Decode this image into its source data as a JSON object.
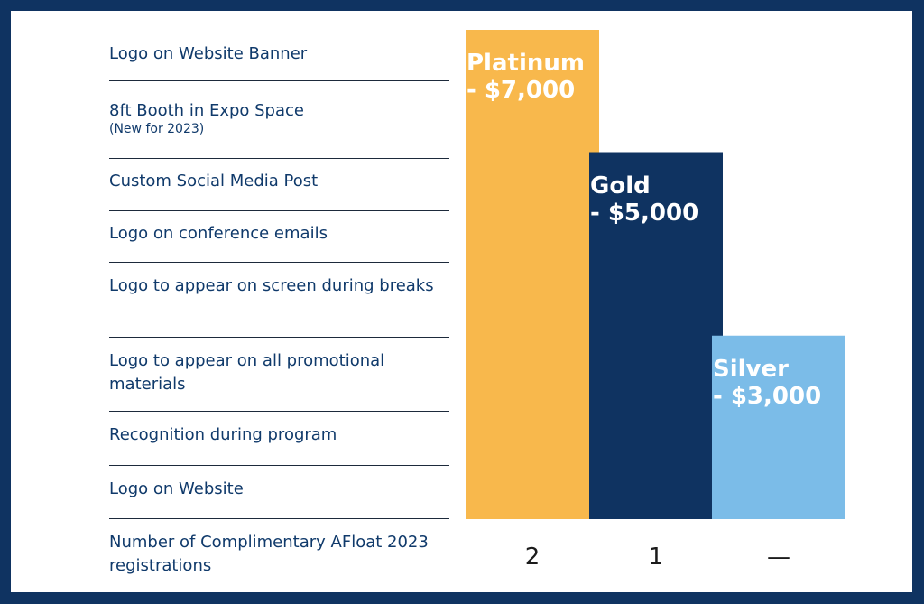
{
  "rows": [
    {
      "label": "Logo on Website Banner"
    },
    {
      "label": "8ft Booth in Expo Space",
      "note": "(New for 2023)"
    },
    {
      "label": "Custom Social Media Post"
    },
    {
      "label": "Logo on conference emails"
    },
    {
      "label": "Logo to appear on screen during breaks"
    },
    {
      "label": "Logo to appear on all promotional materials"
    },
    {
      "label": "Recognition during program"
    },
    {
      "label": "Logo on Website"
    },
    {
      "label": "Number of Complimentary AFloat 2023 registrations"
    }
  ],
  "colors": {
    "platinum": "#f8b84c",
    "gold": "#0f3361",
    "silver": "#7bbce8",
    "frame": "#0f3361",
    "text": "#103a6b"
  },
  "chart_data": {
    "type": "bar",
    "categories": [
      "Platinum",
      "Gold",
      "Silver"
    ],
    "titles": [
      {
        "line1": "Platinum",
        "line2": "- $7,000"
      },
      {
        "line1": "Gold",
        "line2": "- $5,000"
      },
      {
        "line1": "Silver",
        "line2": "- $3,000"
      }
    ],
    "values": [
      7000,
      5000,
      3000
    ],
    "benefits_included": [
      8,
      6,
      3
    ],
    "registrations": [
      "2",
      "1",
      "—"
    ],
    "xlabel": "",
    "ylabel": "",
    "grid": false,
    "legend": "none"
  }
}
